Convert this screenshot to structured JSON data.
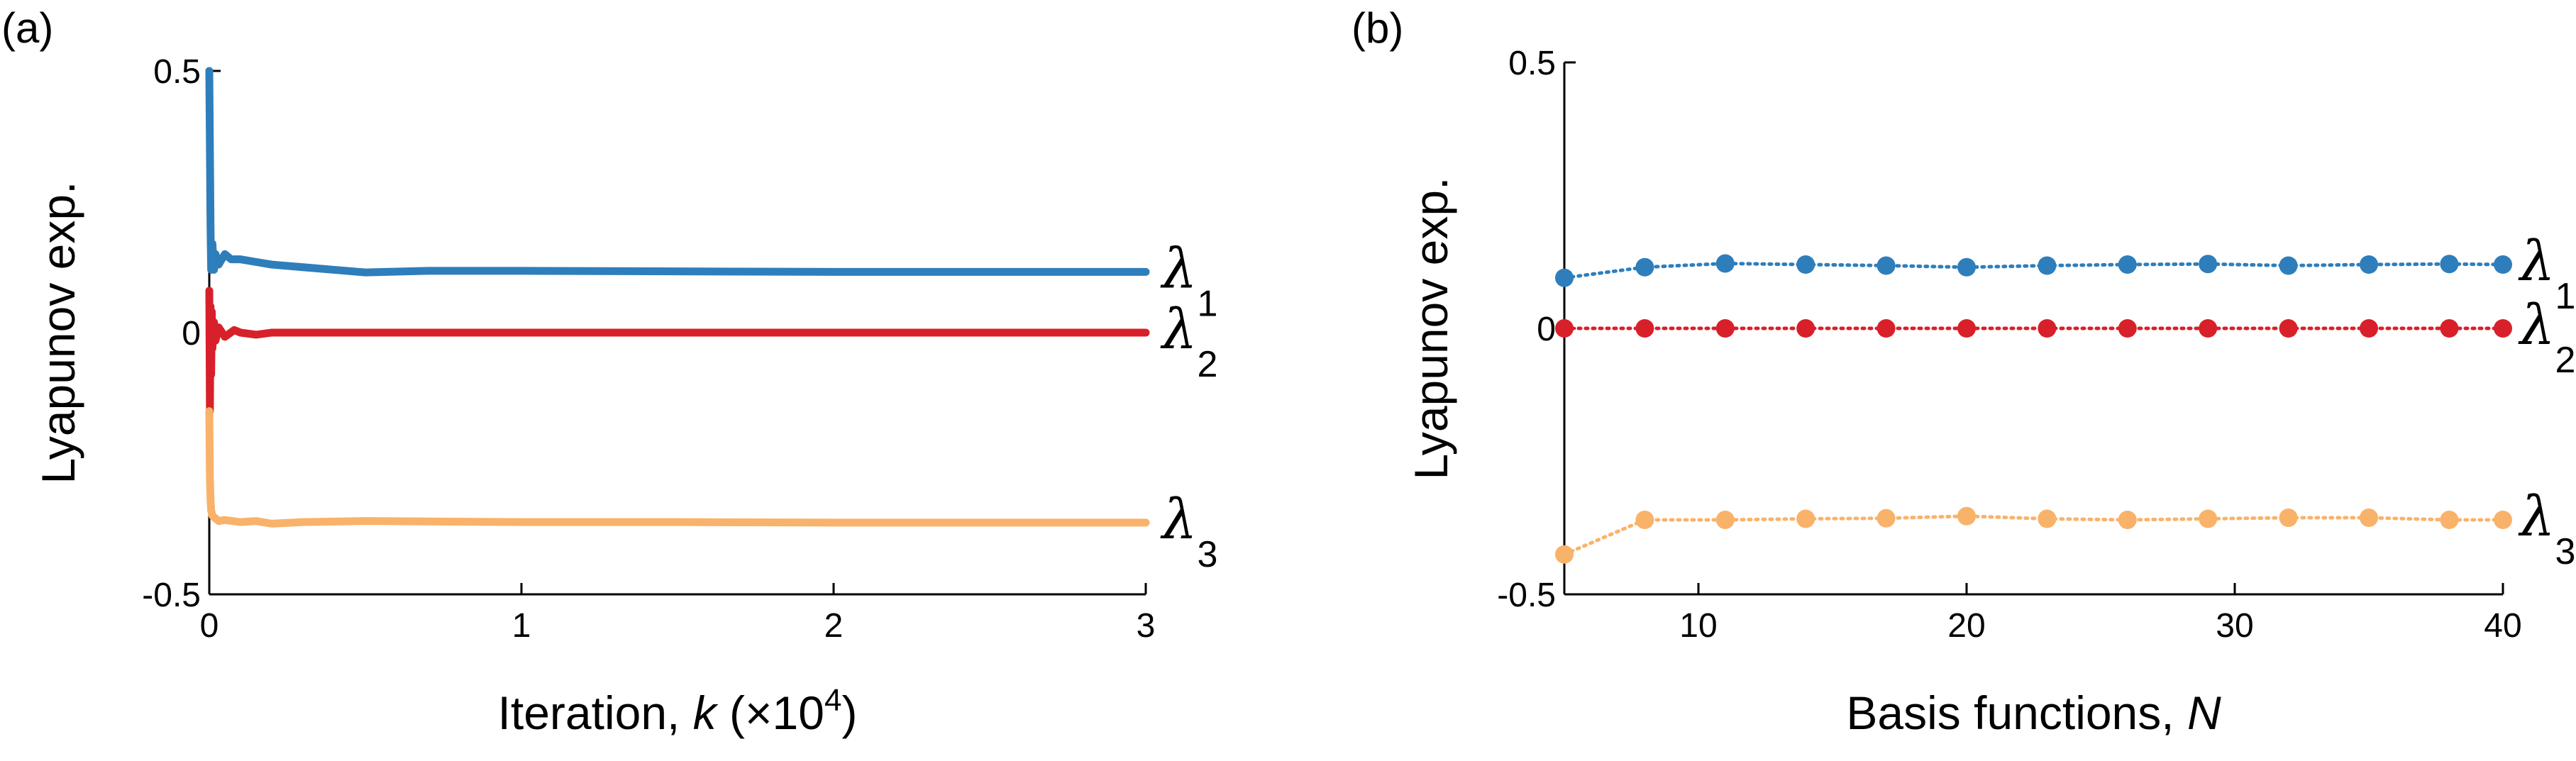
{
  "colors": {
    "lambda1": "#2e7ebb",
    "lambda2": "#d8202a",
    "lambda3": "#f9b26a"
  },
  "chart_data": [
    {
      "type": "line",
      "panel_label": "(a)",
      "xlabel": "Iteration, k (×10",
      "xlabel_parts": {
        "prefix": "Iteration, ",
        "var": "k",
        "mid": " (×10",
        "sup": "4",
        "suffix": ")"
      },
      "ylabel": "Lyapunov exp.",
      "xlim": [
        0,
        3
      ],
      "ylim": [
        -0.5,
        0.5
      ],
      "xticks": [
        "0",
        "1",
        "2",
        "3"
      ],
      "xtick_values": [
        0,
        1,
        2,
        3
      ],
      "yticks": [
        "-0.5",
        "0",
        "0.5"
      ],
      "ytick_values": [
        -0.5,
        0,
        0.5
      ],
      "series": [
        {
          "name": "λ",
          "sub": "1",
          "color_key": "lambda1",
          "x": [
            0,
            0.002,
            0.004,
            0.006,
            0.01,
            0.015,
            0.02,
            0.03,
            0.05,
            0.07,
            0.1,
            0.15,
            0.2,
            0.3,
            0.4,
            0.5,
            0.7,
            1.0,
            1.5,
            2.0,
            2.5,
            3.0
          ],
          "y": [
            0.5,
            0.35,
            0.2,
            0.12,
            0.17,
            0.12,
            0.15,
            0.13,
            0.15,
            0.14,
            0.14,
            0.135,
            0.13,
            0.125,
            0.12,
            0.115,
            0.118,
            0.118,
            0.117,
            0.116,
            0.116,
            0.116
          ]
        },
        {
          "name": "λ",
          "sub": "2",
          "color_key": "lambda2",
          "x": [
            0,
            0.002,
            0.004,
            0.006,
            0.008,
            0.01,
            0.015,
            0.02,
            0.03,
            0.05,
            0.08,
            0.1,
            0.15,
            0.2,
            0.3,
            1.0,
            2.0,
            3.0
          ],
          "y": [
            0.08,
            -0.15,
            0.05,
            -0.08,
            0.04,
            -0.03,
            0.02,
            -0.015,
            0.01,
            -0.008,
            0.005,
            0.0,
            -0.004,
            0.0,
            0.0,
            0.0,
            0.0,
            0.0
          ]
        },
        {
          "name": "λ",
          "sub": "3",
          "color_key": "lambda3",
          "x": [
            0,
            0.002,
            0.004,
            0.006,
            0.01,
            0.02,
            0.03,
            0.05,
            0.1,
            0.15,
            0.2,
            0.3,
            0.5,
            1.0,
            1.5,
            2.0,
            2.5,
            3.0
          ],
          "y": [
            -0.15,
            -0.28,
            -0.32,
            -0.34,
            -0.35,
            -0.355,
            -0.36,
            -0.358,
            -0.362,
            -0.36,
            -0.365,
            -0.362,
            -0.36,
            -0.362,
            -0.362,
            -0.363,
            -0.363,
            -0.363
          ]
        }
      ]
    },
    {
      "type": "line",
      "panel_label": "(b)",
      "xlabel": "Basis functions, N",
      "xlabel_parts": {
        "prefix": "Basis functions, ",
        "var": "N",
        "mid": "",
        "sup": "",
        "suffix": ""
      },
      "ylabel": "Lyapunov exp.",
      "xlim": [
        5,
        40
      ],
      "ylim": [
        -0.5,
        0.5
      ],
      "xticks": [
        "10",
        "20",
        "30",
        "40"
      ],
      "xtick_values": [
        10,
        20,
        30,
        40
      ],
      "yticks": [
        "-0.5",
        "0",
        "0.5"
      ],
      "ytick_values": [
        -0.5,
        0,
        0.5
      ],
      "markers": true,
      "series": [
        {
          "name": "λ",
          "sub": "1",
          "color_key": "lambda1",
          "x": [
            5,
            8,
            11,
            14,
            17,
            20,
            23,
            26,
            29,
            32,
            35,
            38,
            40
          ],
          "y": [
            0.095,
            0.115,
            0.122,
            0.12,
            0.118,
            0.115,
            0.118,
            0.12,
            0.121,
            0.118,
            0.12,
            0.121,
            0.12
          ]
        },
        {
          "name": "λ",
          "sub": "2",
          "color_key": "lambda2",
          "x": [
            5,
            8,
            11,
            14,
            17,
            20,
            23,
            26,
            29,
            32,
            35,
            38,
            40
          ],
          "y": [
            0,
            0,
            0,
            0,
            0,
            0,
            0,
            0,
            0,
            0,
            0,
            0,
            0
          ]
        },
        {
          "name": "λ",
          "sub": "3",
          "color_key": "lambda3",
          "x": [
            5,
            8,
            11,
            14,
            17,
            20,
            23,
            26,
            29,
            32,
            35,
            38,
            40
          ],
          "y": [
            -0.425,
            -0.36,
            -0.36,
            -0.358,
            -0.357,
            -0.353,
            -0.358,
            -0.36,
            -0.358,
            -0.356,
            -0.356,
            -0.36,
            -0.36
          ]
        }
      ]
    }
  ]
}
